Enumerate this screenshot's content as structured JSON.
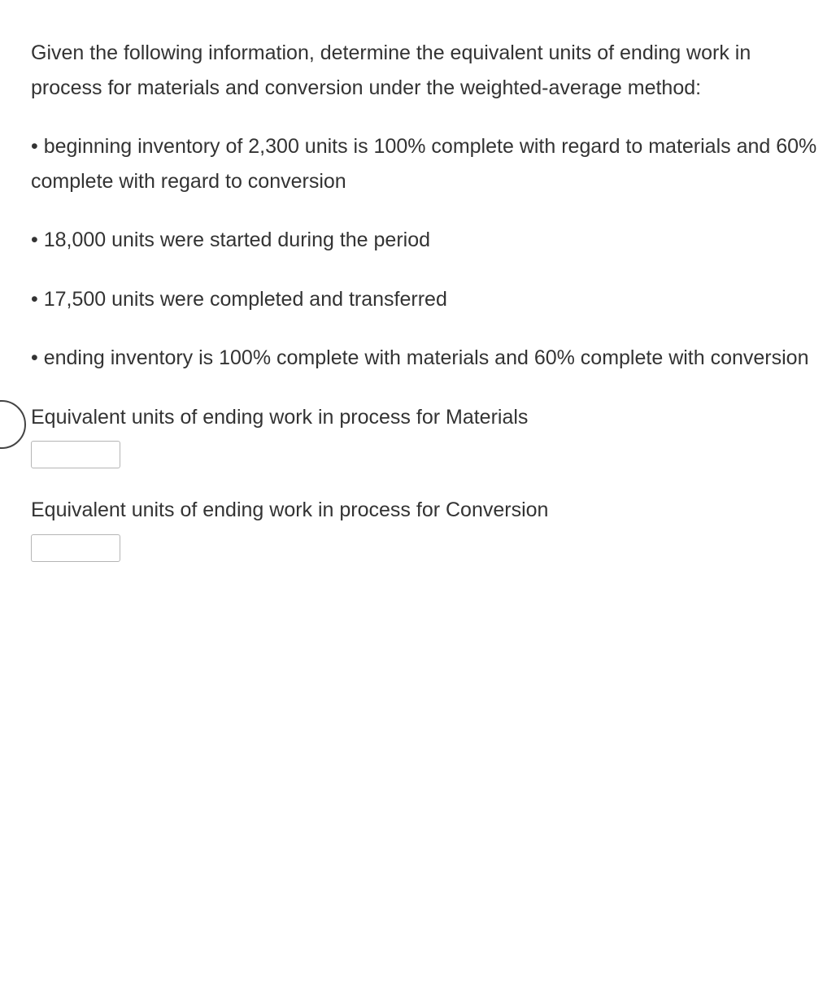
{
  "intro": "Given the following information, determine the equivalent units of ending work in process for materials and conversion under the weighted-average method:",
  "bullets": [
    "beginning inventory of 2,300 units is 100% complete with regard to materials and 60% complete with regard to conversion",
    "18,000 units were started during the period",
    "17,500 units were completed and transferred",
    "ending inventory is 100% complete with materials and 60% complete with conversion"
  ],
  "answers": {
    "materials_label": "Equivalent units of ending work in process for Materials",
    "conversion_label": "Equivalent units of ending work in process for Conversion",
    "materials_value": "",
    "conversion_value": ""
  },
  "style": {
    "text_color": "#333333",
    "background_color": "#ffffff",
    "input_border_color": "#b5b5b5",
    "font_size_pt": 19,
    "bullet_char": "•"
  }
}
